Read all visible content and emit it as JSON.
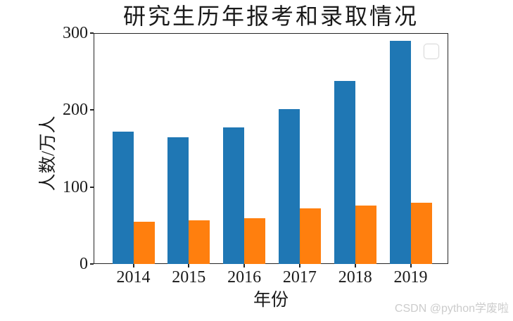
{
  "chart_data": {
    "type": "bar",
    "title": "研究生历年报考和录取情况",
    "xlabel": "年份",
    "ylabel": "人数/万人",
    "categories": [
      "2014",
      "2015",
      "2016",
      "2017",
      "2018",
      "2019"
    ],
    "series": [
      {
        "name": "",
        "color": "#1f77b4",
        "values": [
          172,
          165,
          177,
          201,
          238,
          290
        ]
      },
      {
        "name": "",
        "color": "#ff7f0e",
        "values": [
          55,
          57,
          59,
          72,
          76,
          80
        ]
      }
    ],
    "ylim": [
      0,
      300
    ],
    "yticks": [
      0,
      100,
      200,
      300
    ],
    "grid": false,
    "legend": {
      "visible": true,
      "entries": [],
      "position": "upper-right"
    },
    "axis_color": "#262626"
  },
  "watermark": {
    "text": "CSDN @python学废啦",
    "color": "#cccccc"
  }
}
